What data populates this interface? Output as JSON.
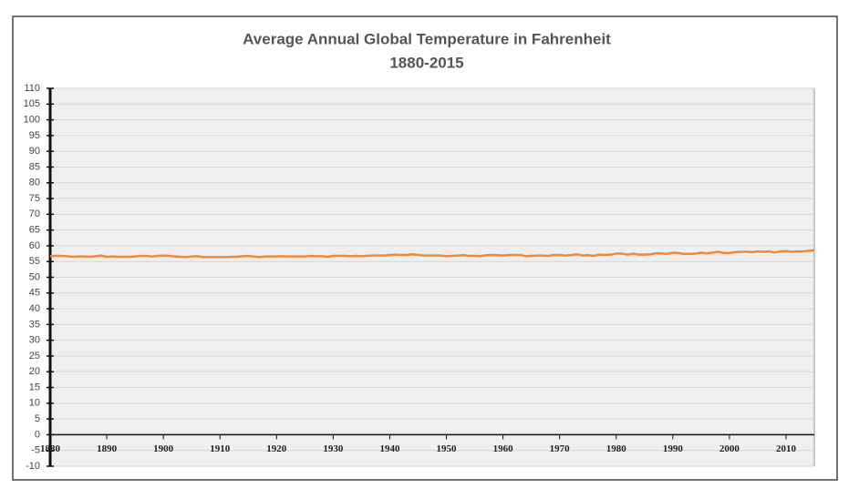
{
  "chart_data": {
    "type": "line",
    "title": "Average Annual Global Temperature in Fahrenheit",
    "subtitle": "1880-2015",
    "x": [
      1880,
      1881,
      1882,
      1883,
      1884,
      1885,
      1886,
      1887,
      1888,
      1889,
      1890,
      1891,
      1892,
      1893,
      1894,
      1895,
      1896,
      1897,
      1898,
      1899,
      1900,
      1901,
      1902,
      1903,
      1904,
      1905,
      1906,
      1907,
      1908,
      1909,
      1910,
      1911,
      1912,
      1913,
      1914,
      1915,
      1916,
      1917,
      1918,
      1919,
      1920,
      1921,
      1922,
      1923,
      1924,
      1925,
      1926,
      1927,
      1928,
      1929,
      1930,
      1931,
      1932,
      1933,
      1934,
      1935,
      1936,
      1937,
      1938,
      1939,
      1940,
      1941,
      1942,
      1943,
      1944,
      1945,
      1946,
      1947,
      1948,
      1949,
      1950,
      1951,
      1952,
      1953,
      1954,
      1955,
      1956,
      1957,
      1958,
      1959,
      1960,
      1961,
      1962,
      1963,
      1964,
      1965,
      1966,
      1967,
      1968,
      1969,
      1970,
      1971,
      1972,
      1973,
      1974,
      1975,
      1976,
      1977,
      1978,
      1979,
      1980,
      1981,
      1982,
      1983,
      1984,
      1985,
      1986,
      1987,
      1988,
      1989,
      1990,
      1991,
      1992,
      1993,
      1994,
      1995,
      1996,
      1997,
      1998,
      1999,
      2000,
      2001,
      2002,
      2003,
      2004,
      2005,
      2006,
      2007,
      2008,
      2009,
      2010,
      2011,
      2012,
      2013,
      2014,
      2015
    ],
    "values": [
      56.7,
      56.8,
      56.8,
      56.7,
      56.5,
      56.6,
      56.6,
      56.5,
      56.7,
      56.9,
      56.5,
      56.6,
      56.5,
      56.5,
      56.5,
      56.6,
      56.8,
      56.8,
      56.6,
      56.8,
      56.9,
      56.8,
      56.6,
      56.5,
      56.4,
      56.6,
      56.7,
      56.4,
      56.4,
      56.4,
      56.4,
      56.4,
      56.5,
      56.5,
      56.7,
      56.8,
      56.6,
      56.4,
      56.6,
      56.6,
      56.6,
      56.7,
      56.6,
      56.6,
      56.6,
      56.6,
      56.8,
      56.7,
      56.7,
      56.5,
      56.8,
      56.8,
      56.8,
      56.7,
      56.8,
      56.7,
      56.8,
      56.9,
      56.9,
      56.9,
      57.1,
      57.2,
      57.1,
      57.1,
      57.3,
      57.1,
      56.9,
      56.9,
      56.9,
      56.9,
      56.7,
      56.8,
      56.9,
      57.0,
      56.8,
      56.8,
      56.7,
      57.0,
      57.1,
      57.0,
      56.9,
      57.1,
      57.1,
      57.1,
      56.7,
      56.8,
      56.9,
      56.9,
      56.8,
      57.1,
      57.1,
      56.9,
      57.0,
      57.3,
      56.9,
      57.0,
      56.8,
      57.2,
      57.1,
      57.2,
      57.5,
      57.5,
      57.2,
      57.5,
      57.2,
      57.2,
      57.3,
      57.6,
      57.6,
      57.4,
      57.8,
      57.7,
      57.4,
      57.4,
      57.5,
      57.8,
      57.6,
      57.8,
      58.1,
      57.7,
      57.7,
      58.0,
      58.1,
      58.1,
      58.0,
      58.2,
      58.1,
      58.2,
      57.9,
      58.2,
      58.3,
      58.1,
      58.2,
      58.2,
      58.4,
      58.6
    ],
    "color": "#f0893a",
    "xlim": [
      1880,
      2015
    ],
    "xticks": [
      1880,
      1890,
      1900,
      1910,
      1920,
      1930,
      1940,
      1950,
      1960,
      1970,
      1980,
      1990,
      2000,
      2010
    ],
    "ylim": [
      -10,
      110
    ],
    "yticks": [
      -10,
      -5,
      0,
      5,
      10,
      15,
      20,
      25,
      30,
      35,
      40,
      45,
      50,
      55,
      60,
      65,
      70,
      75,
      80,
      85,
      90,
      95,
      100,
      105,
      110
    ],
    "grid": true
  }
}
